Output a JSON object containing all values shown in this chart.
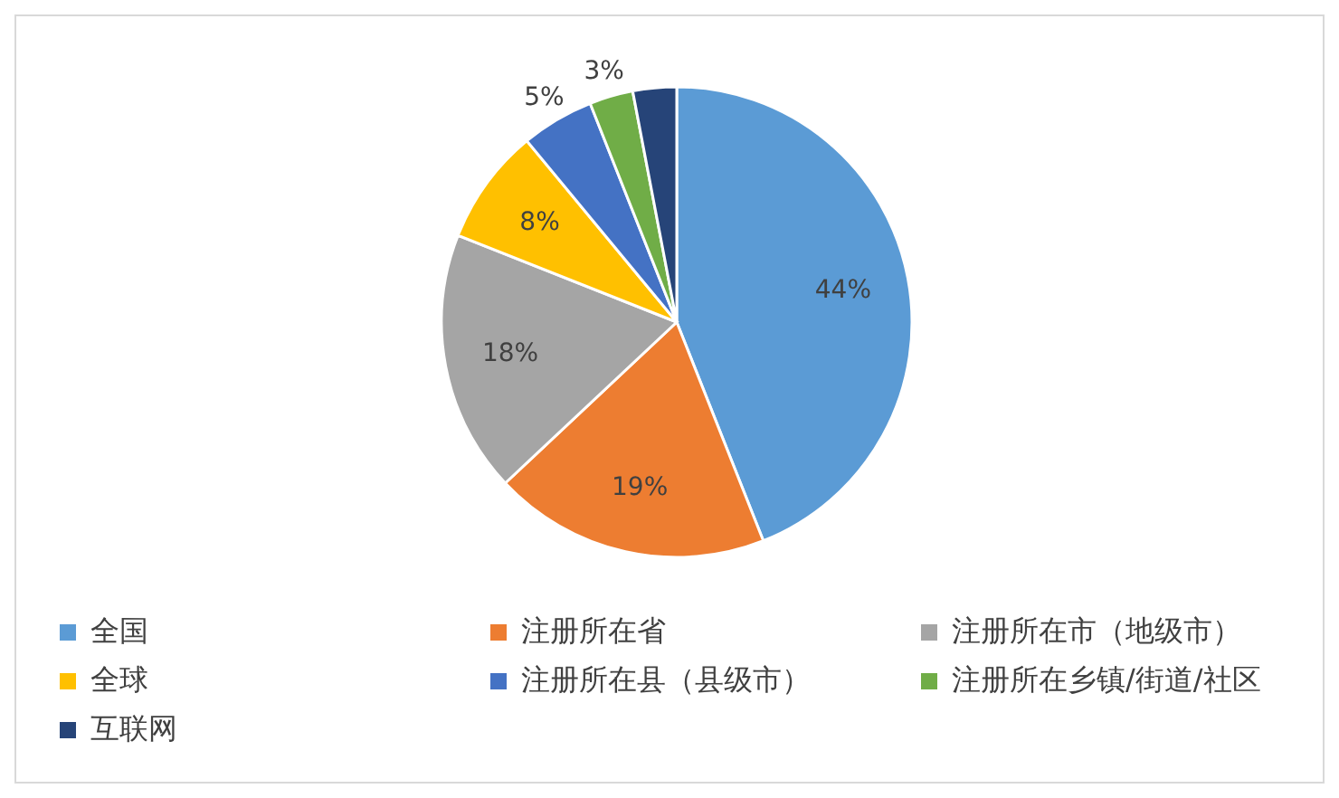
{
  "chart_data": {
    "type": "pie",
    "categories": [
      "全国",
      "注册所在省",
      "注册所在市（地级市）",
      "全球",
      "注册所在县（县级市）",
      "注册所在乡镇/街道/社区",
      "互联网"
    ],
    "values": [
      44,
      19,
      18,
      8,
      5,
      3,
      3
    ],
    "value_labels": [
      "44%",
      "19%",
      "18%",
      "8%",
      "5%",
      "3%",
      null
    ],
    "colors": [
      "#5b9bd5",
      "#ed7d31",
      "#a5a5a5",
      "#ffc000",
      "#4472c4",
      "#70ad47",
      "#264478"
    ],
    "legend": "bottom"
  }
}
